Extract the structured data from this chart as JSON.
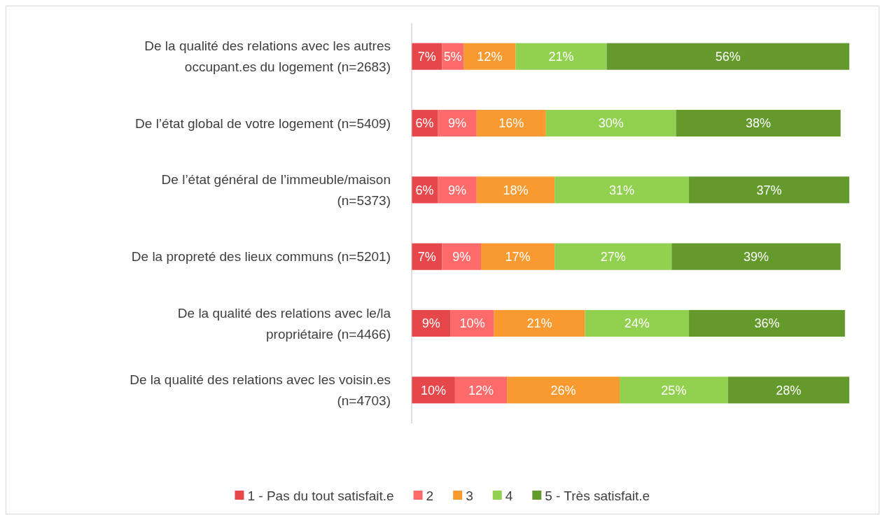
{
  "chart_data": {
    "type": "bar",
    "orientation": "horizontal",
    "stacked": true,
    "legend": "bottom",
    "categories": [
      "De la qualité des relations avec les autres\noccupant.es du logement (n=2683)",
      "De l’état global de votre logement (n=5409)",
      "De l’état général de l’immeuble/maison\n(n=5373)",
      "De la propreté des lieux communs (n=5201)",
      "De la qualité des relations avec le/la\npropriétaire (n=4466)",
      "De la qualité des relations avec les voisin.es\n(n=4703)"
    ],
    "series": [
      {
        "name": "1 - Pas du tout satisfait.e",
        "color": "#e5474b",
        "values": [
          7,
          6,
          6,
          7,
          9,
          10
        ],
        "value_labels": [
          "7%",
          "6%",
          "6%",
          "7%",
          "9%",
          "10%"
        ]
      },
      {
        "name": "2",
        "color": "#ff6b6b",
        "values": [
          5,
          9,
          9,
          9,
          10,
          12
        ],
        "value_labels": [
          "5%",
          "9%",
          "9%",
          "9%",
          "10%",
          "12%"
        ]
      },
      {
        "name": "3",
        "color": "#f89a30",
        "values": [
          12,
          16,
          18,
          17,
          21,
          26
        ],
        "value_labels": [
          "12%",
          "16%",
          "18%",
          "17%",
          "21%",
          "26%"
        ]
      },
      {
        "name": "4",
        "color": "#92d050",
        "values": [
          21,
          30,
          31,
          27,
          24,
          25
        ],
        "value_labels": [
          "21%",
          "30%",
          "31%",
          "27%",
          "24%",
          "25%"
        ]
      },
      {
        "name": "5 - Très satisfait.e",
        "color": "#64992c",
        "values": [
          56,
          38,
          37,
          39,
          36,
          28
        ],
        "value_labels": [
          "56%",
          "38%",
          "37%",
          "39%",
          "36%",
          "28%"
        ]
      }
    ]
  }
}
